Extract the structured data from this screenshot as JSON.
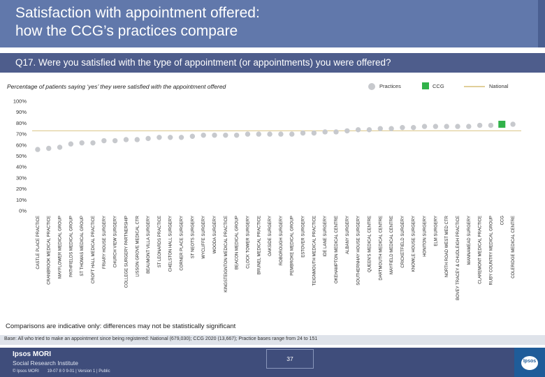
{
  "header": {
    "title_line1": "Satisfaction with appointment offered:",
    "title_line2": "how the CCG’s practices compare"
  },
  "question": "Q17. Were you satisfied with the type of appointment (or appointments) you were offered?",
  "subtitle": "Percentage of patients saying ‘yes’ they were satisfied with the appointment offered",
  "legend": {
    "practices": "Practices",
    "ccg": "CCG",
    "national": "National"
  },
  "colors": {
    "practices": "#c7c9cd",
    "ccg": "#31b24a",
    "national": "#e1cf9a",
    "title_bar": "#6178ab",
    "question_bar": "#4e5d8c"
  },
  "chart_data": {
    "type": "scatter",
    "title": "",
    "xlabel": "",
    "ylabel": "",
    "ylim": [
      0,
      100
    ],
    "y_ticks": [
      "0%",
      "10%",
      "20%",
      "30%",
      "40%",
      "50%",
      "60%",
      "70%",
      "80%",
      "90%",
      "100%"
    ],
    "grid": false,
    "legend_position": "top-right",
    "categories": [
      "CASTLE PLACE PRACTICE",
      "CRANBROOK MEDICAL PRACTICE",
      "MAYFLOWER MEDICAL GROUP",
      "PATHFIELDS MEDICAL GROUP",
      "ST THOMAS MEDICAL GROUP",
      "CROFT HALL MEDICAL PRACTICE",
      "FRIARY HOUSE SURGERY",
      "CHURCH VIEW SURGERY",
      "COLLEGE SURGERY PARTNERSHIP",
      "LISSON GROVE MEDICAL CTR",
      "BEAUMONT VILLA SURGERY",
      "ST LEONARDS PRACTICE",
      "CHELSTON HALL SURGERY",
      "CORNER PLACE SURGERY",
      "ST NEOTS SURGERY",
      "WYCLIFFE SURGERY",
      "WOODA SURGERY",
      "KINGSTEIGNTON MEDICAL PRACTICE",
      "BEACON MEDICAL GROUP",
      "CLOCK TOWER SURGERY",
      "BRUNEL MEDICAL PRACTICE",
      "OAKSIDE SURGERY",
      "ROBOROUGH SURGERY",
      "PEMBROKE MEDICAL GROUP",
      "ESTOVER SURGERY",
      "TEIGNMOUTH MEDICAL PRACTICE",
      "IDE LANE SURGERY",
      "OKEHAMPTON MEDICAL CENTRE",
      "ALBANY SURGERY",
      "SOUTHERNHAY HOUSE SURGERY",
      "QUEEN'S MEDICAL CENTRE",
      "DARTMOUTH MEDICAL CENTRE",
      "MAYFIELD MEDICAL CENTRE",
      "CRICKETFIELD SURGERY",
      "KNOWLE HOUSE SURGERY",
      "HONITON SURGERY",
      "ELM SURGERY",
      "NORTH ROAD WEST MED CTR",
      "BOVEY TRACEY & CHUDLEIGH PRACTICE",
      "MANNAMEAD SURGERY",
      "CLAREMONT MEDICAL PRACTICE",
      "RUBY COUNTRY MEDICAL GROUP",
      "CCG",
      "COLERIDGE MEDICAL CENTRE"
    ],
    "series": [
      {
        "name": "Practices",
        "values": [
          56,
          57,
          58,
          61,
          62,
          62,
          64,
          64,
          65,
          65,
          66,
          67,
          67,
          67,
          68,
          69,
          69,
          69,
          69,
          70,
          70,
          70,
          70,
          70,
          71,
          71,
          72,
          72,
          73,
          74,
          74,
          75,
          75,
          76,
          76,
          77,
          77,
          77,
          77,
          77,
          78,
          78,
          null,
          79
        ]
      },
      {
        "name": "CCG",
        "values": [
          null,
          null,
          null,
          null,
          null,
          null,
          null,
          null,
          null,
          null,
          null,
          null,
          null,
          null,
          null,
          null,
          null,
          null,
          null,
          null,
          null,
          null,
          null,
          null,
          null,
          null,
          null,
          null,
          null,
          null,
          null,
          null,
          null,
          null,
          null,
          null,
          null,
          null,
          null,
          null,
          null,
          null,
          79,
          null
        ]
      }
    ],
    "national": 73
  },
  "footnote": "Comparisons are indicative only: differences may not be statistically significant",
  "base_note": "Base: All who tried to make an appointment since being registered: National (679,030); CCG 2020 (13,667); Practice bases range from 24 to 151",
  "footer": {
    "logo_name": "Ipsos MORI",
    "logo_sub": "Social Research Institute",
    "copyright": "© Ipsos MORI",
    "job_ref": "19-07 8 0 9-01 | Version 1 | Public",
    "page_number": "37",
    "badge_text": "Ipsos"
  }
}
